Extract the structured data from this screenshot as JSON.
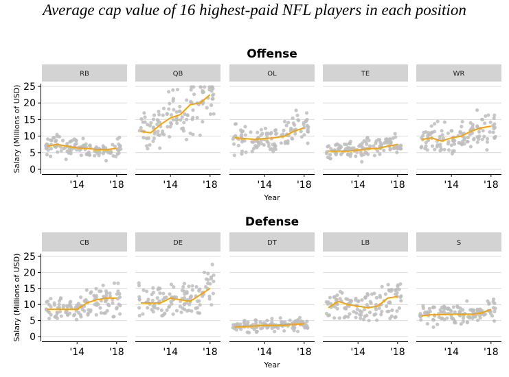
{
  "title": "Average cap value of 16 highest-paid NFL players in each position",
  "colors": {
    "points": "#bdbdbd",
    "trend": "#f5a300",
    "strip": "#d3d3d3",
    "grid": "#d9d9d9"
  },
  "chart_data": [
    {
      "type": "scatter",
      "title": "Offense",
      "xlabel": "Year",
      "ylabel": "Salary (Millions of USD)",
      "xlim": [
        2011,
        2018.5
      ],
      "ylim": [
        0,
        25
      ],
      "x_ticks": [
        2014,
        2018
      ],
      "x_tick_labels": [
        "'14",
        "'18"
      ],
      "y_ticks": [
        0,
        5,
        10,
        15,
        20,
        25
      ],
      "grid": true,
      "panels": [
        {
          "name": "RB",
          "trend": {
            "x": [
              2011,
              2012,
              2013,
              2014,
              2015,
              2016,
              2017,
              2018
            ],
            "y": [
              7.0,
              7.5,
              7.0,
              6.5,
              6.3,
              6.0,
              6.0,
              6.3
            ]
          }
        },
        {
          "name": "QB",
          "trend": {
            "x": [
              2011,
              2012,
              2013,
              2014,
              2015,
              2016,
              2017,
              2018
            ],
            "y": [
              11.5,
              11.0,
              13.5,
              15.5,
              16.5,
              19.5,
              20.0,
              22.5
            ]
          }
        },
        {
          "name": "OL",
          "trend": {
            "x": [
              2011,
              2012,
              2013,
              2014,
              2015,
              2016,
              2017,
              2018
            ],
            "y": [
              9.5,
              9.3,
              9.0,
              9.3,
              9.5,
              10.0,
              11.5,
              12.5
            ]
          }
        },
        {
          "name": "TE",
          "trend": {
            "x": [
              2011,
              2012,
              2013,
              2014,
              2015,
              2016,
              2017,
              2018
            ],
            "y": [
              5.5,
              5.5,
              5.5,
              5.8,
              6.2,
              6.3,
              7.0,
              7.5
            ]
          }
        },
        {
          "name": "WR",
          "trend": {
            "x": [
              2011,
              2012,
              2013,
              2014,
              2015,
              2016,
              2017,
              2018
            ],
            "y": [
              9.0,
              9.5,
              8.5,
              9.5,
              10.0,
              11.5,
              12.5,
              13.0
            ]
          }
        }
      ]
    },
    {
      "type": "scatter",
      "title": "Defense",
      "xlabel": "Year",
      "ylabel": "Salary (Millions of USD)",
      "xlim": [
        2011,
        2018.5
      ],
      "ylim": [
        0,
        25
      ],
      "x_ticks": [
        2014,
        2018
      ],
      "x_tick_labels": [
        "'14",
        "'18"
      ],
      "y_ticks": [
        0,
        5,
        10,
        15,
        20,
        25
      ],
      "grid": true,
      "panels": [
        {
          "name": "CB",
          "trend": {
            "x": [
              2011,
              2012,
              2013,
              2014,
              2015,
              2016,
              2017,
              2018
            ],
            "y": [
              8.5,
              8.5,
              8.5,
              8.5,
              10.5,
              11.5,
              12.0,
              12.0
            ]
          }
        },
        {
          "name": "DE",
          "trend": {
            "x": [
              2011,
              2012,
              2013,
              2014,
              2015,
              2016,
              2017,
              2018
            ],
            "y": [
              10.5,
              10.5,
              10.5,
              12.0,
              11.5,
              11.0,
              13.0,
              15.0
            ]
          }
        },
        {
          "name": "DT",
          "trend": {
            "x": [
              2011,
              2012,
              2013,
              2014,
              2015,
              2016,
              2017,
              2018
            ],
            "y": [
              3.0,
              3.2,
              3.3,
              3.5,
              3.5,
              3.6,
              3.8,
              4.0
            ]
          }
        },
        {
          "name": "LB",
          "trend": {
            "x": [
              2011,
              2012,
              2013,
              2014,
              2015,
              2016,
              2017,
              2018
            ],
            "y": [
              9.0,
              11.0,
              10.0,
              9.5,
              9.0,
              9.5,
              12.0,
              12.5
            ]
          }
        },
        {
          "name": "S",
          "trend": {
            "x": [
              2011,
              2012,
              2013,
              2014,
              2015,
              2016,
              2017,
              2018
            ],
            "y": [
              6.5,
              6.8,
              6.8,
              7.0,
              7.0,
              7.0,
              7.3,
              8.5
            ]
          }
        }
      ]
    }
  ]
}
